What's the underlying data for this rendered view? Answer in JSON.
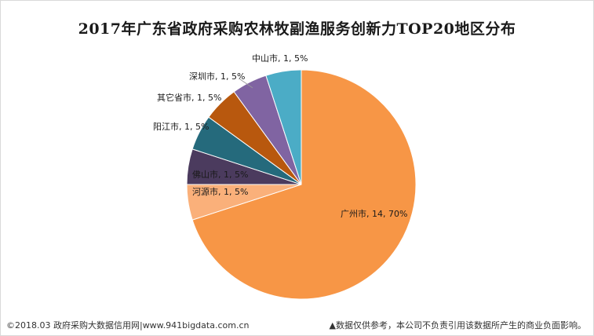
{
  "title": "2017年广东省政府采购农林牧副渔服务创新力TOP20地区分布",
  "chart_data": {
    "type": "pie",
    "slices": [
      {
        "name": "广州市",
        "value": 14,
        "percent": "70%",
        "color": "#f79646"
      },
      {
        "name": "中山市",
        "value": 1,
        "percent": "5%",
        "color": "#fab07a"
      },
      {
        "name": "深圳市",
        "value": 1,
        "percent": "5%",
        "color": "#4b3b5e"
      },
      {
        "name": "其它省市",
        "value": 1,
        "percent": "5%",
        "color": "#256a7c"
      },
      {
        "name": "阳江市",
        "value": 1,
        "percent": "5%",
        "color": "#b8580e"
      },
      {
        "name": "佛山市",
        "value": 1,
        "percent": "5%",
        "color": "#8064a2"
      },
      {
        "name": "河源市",
        "value": 1,
        "percent": "5%",
        "color": "#4bacc6"
      }
    ]
  },
  "footer": {
    "left": "©2018.03 政府采购大数据信用网|www.941bigdata.com.cn",
    "right": "▲数据仅供参考，本公司不负责引用该数据所产生的商业负面影响。"
  }
}
